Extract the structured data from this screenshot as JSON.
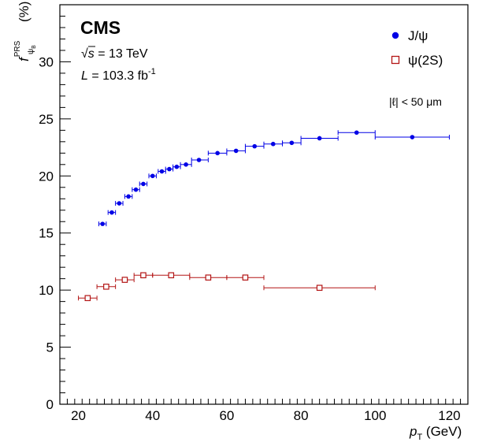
{
  "chart_data": {
    "type": "scatter",
    "title": "CMS",
    "annotations": {
      "sqrt_s_symbol": "√s",
      "sqrt_s_value": " = 13 TeV",
      "lumi_symbol": "L",
      "lumi_value": " = 103.3 fb",
      "lumi_exponent": "-1",
      "cut_label": "|ℓ| < 50 μm"
    },
    "xlabel": {
      "main": "p",
      "sub": "T",
      "unit": " (GeV)"
    },
    "ylabel": {
      "main": "f",
      "sup": "PRS",
      "sub": "ψ",
      "subsub": "B",
      "unit": "(%)"
    },
    "xlim": [
      15,
      125
    ],
    "ylim": [
      0,
      35
    ],
    "xticks": [
      20,
      40,
      60,
      80,
      100,
      120
    ],
    "yticks": [
      0,
      5,
      10,
      15,
      20,
      25,
      30
    ],
    "legend_position": "top-right",
    "series": [
      {
        "name": "J/ψ",
        "color": "#0000e6",
        "marker": "filled-circle",
        "points": [
          {
            "x": 26.5,
            "y": 15.8,
            "xlo": 25.5,
            "xhi": 27.5
          },
          {
            "x": 29.0,
            "y": 16.8,
            "xlo": 28.0,
            "xhi": 30.0
          },
          {
            "x": 31.0,
            "y": 17.6,
            "xlo": 30.0,
            "xhi": 32.0
          },
          {
            "x": 33.5,
            "y": 18.2,
            "xlo": 32.5,
            "xhi": 34.5
          },
          {
            "x": 35.5,
            "y": 18.8,
            "xlo": 34.5,
            "xhi": 36.5
          },
          {
            "x": 37.5,
            "y": 19.3,
            "xlo": 36.5,
            "xhi": 38.5
          },
          {
            "x": 40.0,
            "y": 20.0,
            "xlo": 39.0,
            "xhi": 41.0
          },
          {
            "x": 42.5,
            "y": 20.4,
            "xlo": 41.5,
            "xhi": 43.5
          },
          {
            "x": 44.5,
            "y": 20.6,
            "xlo": 43.5,
            "xhi": 45.5
          },
          {
            "x": 46.5,
            "y": 20.8,
            "xlo": 45.5,
            "xhi": 47.5
          },
          {
            "x": 49.0,
            "y": 21.0,
            "xlo": 47.5,
            "xhi": 50.5
          },
          {
            "x": 52.5,
            "y": 21.4,
            "xlo": 50.5,
            "xhi": 55.0
          },
          {
            "x": 57.5,
            "y": 22.0,
            "xlo": 55.0,
            "xhi": 60.0
          },
          {
            "x": 62.5,
            "y": 22.2,
            "xlo": 60.0,
            "xhi": 65.0
          },
          {
            "x": 67.5,
            "y": 22.6,
            "xlo": 65.0,
            "xhi": 70.0
          },
          {
            "x": 72.5,
            "y": 22.8,
            "xlo": 70.0,
            "xhi": 75.0
          },
          {
            "x": 77.5,
            "y": 22.9,
            "xlo": 75.0,
            "xhi": 80.0
          },
          {
            "x": 85.0,
            "y": 23.3,
            "xlo": 80.0,
            "xhi": 90.0
          },
          {
            "x": 95.0,
            "y": 23.8,
            "xlo": 90.0,
            "xhi": 100.0
          },
          {
            "x": 110.0,
            "y": 23.4,
            "xlo": 100.0,
            "xhi": 120.0
          }
        ]
      },
      {
        "name": "ψ(2S)",
        "color": "#b31515",
        "marker": "open-square",
        "points": [
          {
            "x": 22.5,
            "y": 9.3,
            "xlo": 20.0,
            "xhi": 25.0
          },
          {
            "x": 27.5,
            "y": 10.3,
            "xlo": 25.0,
            "xhi": 30.0
          },
          {
            "x": 32.5,
            "y": 10.9,
            "xlo": 30.0,
            "xhi": 35.0
          },
          {
            "x": 37.5,
            "y": 11.3,
            "xlo": 35.0,
            "xhi": 40.0
          },
          {
            "x": 45.0,
            "y": 11.3,
            "xlo": 40.0,
            "xhi": 50.0
          },
          {
            "x": 55.0,
            "y": 11.1,
            "xlo": 50.0,
            "xhi": 60.0
          },
          {
            "x": 65.0,
            "y": 11.1,
            "xlo": 60.0,
            "xhi": 70.0
          },
          {
            "x": 85.0,
            "y": 10.2,
            "xlo": 70.0,
            "xhi": 100.0
          }
        ]
      }
    ]
  }
}
